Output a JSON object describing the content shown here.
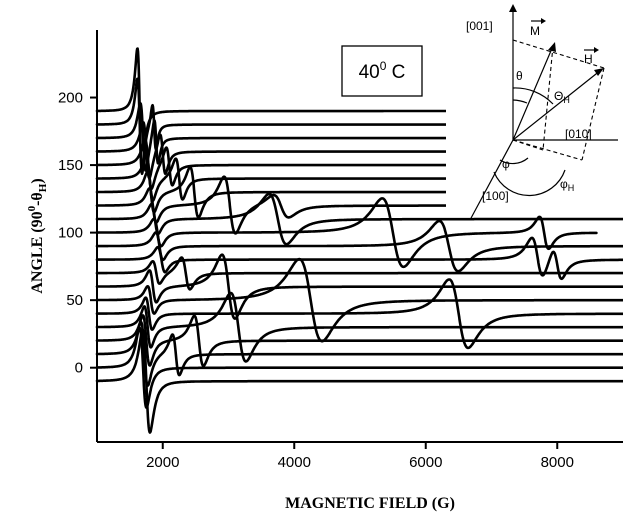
{
  "chart_data": {
    "type": "line",
    "title": "",
    "xlabel": "MAGNETIC FIELD (G)",
    "ylabel_prefix": "ANGLE (90",
    "ylabel_sup": "0",
    "ylabel_mid": "-θ",
    "ylabel_sub": "H",
    "ylabel_suffix": ")",
    "xlim": [
      1000,
      9000
    ],
    "ylim": [
      -55,
      250
    ],
    "x_ticks": [
      2000,
      4000,
      6000,
      8000
    ],
    "y_ticks": [
      0,
      50,
      100,
      150,
      200
    ],
    "annotation": {
      "text": "40",
      "sup": "0",
      "unit": " C"
    },
    "inset": {
      "labels": {
        "axis_001": "[001]",
        "axis_010": "[010]",
        "axis_100": "[100]",
        "vec_m": "M",
        "vec_h": "H",
        "theta": "θ",
        "theta_h": "Θ",
        "theta_h_sub": "H",
        "phi": "φ",
        "phi_h": "φ",
        "phi_h_sub": "H"
      }
    },
    "series": [
      {
        "offset": 190,
        "end": 6500,
        "res": [
          [
            1650,
            55,
            60
          ]
        ]
      },
      {
        "offset": 180,
        "end": 6500,
        "res": [
          [
            1650,
            40,
            60
          ],
          [
            1870,
            20,
            45
          ]
        ]
      },
      {
        "offset": 170,
        "end": 6500,
        "res": [
          [
            1700,
            30,
            70
          ],
          [
            1900,
            20,
            50
          ]
        ]
      },
      {
        "offset": 160,
        "end": 6500,
        "res": [
          [
            1750,
            25,
            80
          ],
          [
            2000,
            18,
            70
          ]
        ]
      },
      {
        "offset": 150,
        "end": 6500,
        "res": [
          [
            1780,
            22,
            85
          ],
          [
            2100,
            17,
            80
          ]
        ]
      },
      {
        "offset": 140,
        "end": 6500,
        "res": [
          [
            1800,
            20,
            85
          ],
          [
            2250,
            18,
            90
          ]
        ]
      },
      {
        "offset": 130,
        "end": 6500,
        "res": [
          [
            1820,
            18,
            85
          ],
          [
            2480,
            22,
            110
          ]
        ]
      },
      {
        "offset": 120,
        "end": 9000,
        "res": [
          [
            1850,
            15,
            90
          ],
          [
            3020,
            25,
            150
          ],
          [
            3800,
            10,
            200
          ]
        ]
      },
      {
        "offset": 110,
        "end": 9000,
        "res": [
          [
            1880,
            13,
            90
          ],
          [
            3750,
            22,
            230
          ]
        ]
      },
      {
        "offset": 100,
        "end": 8600,
        "res": [
          [
            1920,
            12,
            95
          ],
          [
            5500,
            30,
            280
          ],
          [
            7800,
            14,
            120
          ]
        ]
      },
      {
        "offset": 90,
        "end": 9000,
        "res": [
          [
            1950,
            12,
            95
          ],
          [
            6350,
            22,
            250
          ]
        ]
      },
      {
        "offset": 80,
        "end": 9000,
        "res": [
          [
            1980,
            11,
            95
          ],
          [
            7700,
            18,
            150
          ],
          [
            8000,
            14,
            120
          ]
        ]
      },
      {
        "offset": 70,
        "end": 9000,
        "res": [
          [
            1900,
            10,
            90
          ],
          [
            2350,
            14,
            110
          ]
        ]
      },
      {
        "offset": 60,
        "end": 9000,
        "res": [
          [
            1850,
            14,
            90
          ],
          [
            3000,
            28,
            170
          ]
        ]
      },
      {
        "offset": 50,
        "end": 9000,
        "res": [
          [
            1820,
            12,
            85
          ],
          [
            4250,
            36,
            300
          ]
        ]
      },
      {
        "offset": 40,
        "end": 9000,
        "res": [
          [
            1790,
            14,
            85
          ],
          [
            6500,
            30,
            250
          ]
        ]
      },
      {
        "offset": 30,
        "end": 9000,
        "res": [
          [
            1770,
            18,
            85
          ],
          [
            3150,
            30,
            200
          ]
        ]
      },
      {
        "offset": 20,
        "end": 9000,
        "res": [
          [
            1750,
            22,
            90
          ],
          [
            2550,
            22,
            120
          ]
        ]
      },
      {
        "offset": 10,
        "end": 9000,
        "res": [
          [
            1720,
            28,
            90
          ],
          [
            2200,
            18,
            90
          ]
        ]
      },
      {
        "offset": 0,
        "end": 9000,
        "res": [
          [
            1700,
            35,
            90
          ]
        ]
      },
      {
        "offset": -10,
        "end": 9000,
        "res": [
          [
            1750,
            45,
            95
          ]
        ]
      }
    ]
  }
}
